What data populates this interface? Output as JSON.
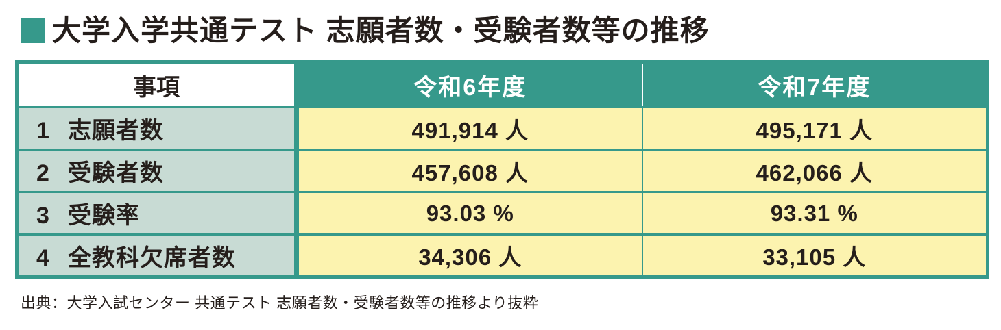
{
  "title": {
    "text": "大学入学共通テスト 志願者数・受験者数等の推移"
  },
  "table": {
    "headers": [
      "事項",
      "令和6年度",
      "令和7年度"
    ],
    "rows": [
      {
        "no": "1",
        "label": "志願者数",
        "r6": "491,914 人",
        "r7": "495,171 人"
      },
      {
        "no": "2",
        "label": "受験者数",
        "r6": "457,608 人",
        "r7": "462,066 人"
      },
      {
        "no": "3",
        "label": "受験率",
        "r6": "93.03 %",
        "r7": "93.31 %"
      },
      {
        "no": "4",
        "label": "全教科欠席者数",
        "r6": "34,306 人",
        "r7": "33,105 人"
      }
    ]
  },
  "source": "出典：大学入試センター 共通テスト 志願者数・受験者数等の推移より抜粋",
  "colors": {
    "accent_teal": "#36998B",
    "label_cell_bg": "#C8DBD4",
    "value_cell_bg": "#FCF3AF",
    "header_text": "#FFFFFF",
    "ink": "#251E1B"
  },
  "chart_data": {
    "type": "table",
    "title": "大学入学共通テスト 志願者数・受験者数等の推移",
    "columns": [
      "事項",
      "令和6年度",
      "令和7年度"
    ],
    "rows": [
      [
        "志願者数",
        491914,
        495171
      ],
      [
        "受験者数",
        457608,
        462066
      ],
      [
        "受験率(%)",
        93.03,
        93.31
      ],
      [
        "全教科欠席者数",
        34306,
        33105
      ]
    ],
    "units": {
      "志願者数": "人",
      "受験者数": "人",
      "受験率": "%",
      "全教科欠席者数": "人"
    }
  }
}
